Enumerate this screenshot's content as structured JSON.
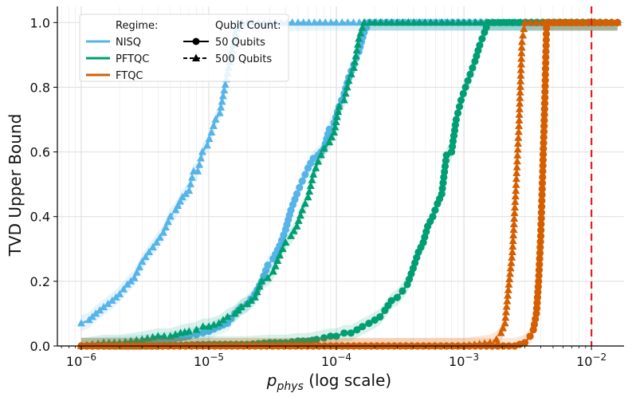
{
  "chart_data": {
    "type": "line",
    "title": "",
    "xlabel_main": "p",
    "xlabel_sub": "phys",
    "xlabel_suffix": " (log scale)",
    "ylabel": "TVD Upper Bound",
    "xscale": "log",
    "xlim": [
      6.5e-07,
      0.018
    ],
    "ylim": [
      0,
      1.05
    ],
    "x_ticks": [
      {
        "value": 1e-06,
        "base": "10",
        "exp": "−6"
      },
      {
        "value": 1e-05,
        "base": "10",
        "exp": "−5"
      },
      {
        "value": 0.0001,
        "base": "10",
        "exp": "−4"
      },
      {
        "value": 0.001,
        "base": "10",
        "exp": "−3"
      },
      {
        "value": 0.01,
        "base": "10",
        "exp": "−2"
      }
    ],
    "y_ticks": [
      "0.0",
      "0.2",
      "0.4",
      "0.6",
      "0.8",
      "1.0"
    ],
    "y_tick_values": [
      0,
      0.2,
      0.4,
      0.6,
      0.8,
      1.0
    ],
    "grid": true,
    "threshold_line": {
      "x": 0.01,
      "color": "#e41a1c",
      "style": "dashed"
    },
    "legend": {
      "placement": "top-left",
      "regime_title": "Regime:",
      "regimes": [
        {
          "name": "NISQ",
          "color": "#56b4e9"
        },
        {
          "name": "PFTQC",
          "color": "#009e73"
        },
        {
          "name": "FTQC",
          "color": "#d55e00"
        }
      ],
      "qubit_title": "Qubit Count:",
      "qubit_counts": [
        {
          "name": "50 Qubits",
          "marker": "circle",
          "style": "solid"
        },
        {
          "name": "500 Qubits",
          "marker": "triangle",
          "style": "dashed"
        }
      ]
    },
    "series": [
      {
        "name": "NISQ 500 Qubits",
        "regime": "NISQ",
        "qubits": 500,
        "color": "#56b4e9",
        "marker": "triangle",
        "style": "dashed",
        "points": [
          [
            1e-06,
            0.07
          ],
          [
            1.15e-06,
            0.08
          ],
          [
            1.3e-06,
            0.1
          ],
          [
            1.5e-06,
            0.12
          ],
          [
            1.75e-06,
            0.14
          ],
          [
            2e-06,
            0.16
          ],
          [
            2.3e-06,
            0.19
          ],
          [
            2.6e-06,
            0.21
          ],
          [
            3e-06,
            0.26
          ],
          [
            3.4e-06,
            0.29
          ],
          [
            3.9e-06,
            0.32
          ],
          [
            4.4e-06,
            0.35
          ],
          [
            5e-06,
            0.4
          ],
          [
            5.5e-06,
            0.42
          ],
          [
            6.2e-06,
            0.46
          ],
          [
            7e-06,
            0.48
          ],
          [
            7.6e-06,
            0.54
          ],
          [
            8.2e-06,
            0.54
          ],
          [
            8.9e-06,
            0.6
          ],
          [
            9.7e-06,
            0.62
          ],
          [
            1.05e-05,
            0.66
          ],
          [
            1.13e-05,
            0.7
          ],
          [
            1.22e-05,
            0.72
          ],
          [
            1.32e-05,
            0.79
          ],
          [
            1.43e-05,
            0.86
          ],
          [
            1.55e-05,
            0.93
          ],
          [
            1.68e-05,
            1.0
          ],
          [
            2e-05,
            1.0
          ],
          [
            3e-05,
            1.0
          ],
          [
            5e-05,
            1.0
          ],
          [
            0.0001,
            1.0
          ],
          [
            0.016,
            1.0
          ]
        ]
      },
      {
        "name": "NISQ 50 Qubits",
        "regime": "NISQ",
        "qubits": 50,
        "color": "#56b4e9",
        "marker": "circle",
        "style": "solid",
        "points": [
          [
            1e-06,
            0.0
          ],
          [
            2e-06,
            0.005
          ],
          [
            3e-06,
            0.01
          ],
          [
            4e-06,
            0.015
          ],
          [
            5e-06,
            0.02
          ],
          [
            6e-06,
            0.025
          ],
          [
            7e-06,
            0.03
          ],
          [
            8e-06,
            0.035
          ],
          [
            9e-06,
            0.04
          ],
          [
            1e-05,
            0.045
          ],
          [
            1.2e-05,
            0.06
          ],
          [
            1.4e-05,
            0.07
          ],
          [
            1.6e-05,
            0.1
          ],
          [
            1.8e-05,
            0.12
          ],
          [
            2e-05,
            0.13
          ],
          [
            2.3e-05,
            0.16
          ],
          [
            2.6e-05,
            0.2
          ],
          [
            2.9e-05,
            0.25
          ],
          [
            3.2e-05,
            0.27
          ],
          [
            3.6e-05,
            0.31
          ],
          [
            4e-05,
            0.36
          ],
          [
            4.4e-05,
            0.42
          ],
          [
            4.9e-05,
            0.47
          ],
          [
            5.4e-05,
            0.51
          ],
          [
            6e-05,
            0.55
          ],
          [
            6.6e-05,
            0.58
          ],
          [
            7.2e-05,
            0.59
          ],
          [
            8e-05,
            0.61
          ],
          [
            8.8e-05,
            0.67
          ],
          [
            9.6e-05,
            0.69
          ],
          [
            0.000105,
            0.74
          ],
          [
            0.000115,
            0.78
          ],
          [
            0.000125,
            0.83
          ],
          [
            0.000137,
            0.87
          ],
          [
            0.00015,
            0.91
          ],
          [
            0.000165,
            0.97
          ],
          [
            0.00018,
            1.0
          ],
          [
            0.0003,
            1.0
          ],
          [
            0.001,
            1.0
          ],
          [
            0.016,
            1.0
          ]
        ]
      },
      {
        "name": "PFTQC 500 Qubits",
        "regime": "PFTQC",
        "qubits": 500,
        "color": "#009e73",
        "marker": "triangle",
        "style": "dashed",
        "points": [
          [
            1e-06,
            0.0
          ],
          [
            1.5e-06,
            0.01
          ],
          [
            2e-06,
            0.01
          ],
          [
            3e-06,
            0.02
          ],
          [
            4e-06,
            0.03
          ],
          [
            5e-06,
            0.03
          ],
          [
            6e-06,
            0.04
          ],
          [
            7e-06,
            0.045
          ],
          [
            8e-06,
            0.05
          ],
          [
            9e-06,
            0.06
          ],
          [
            1e-05,
            0.06
          ],
          [
            1.2e-05,
            0.07
          ],
          [
            1.4e-05,
            0.09
          ],
          [
            1.6e-05,
            0.1
          ],
          [
            1.8e-05,
            0.12
          ],
          [
            2e-05,
            0.13
          ],
          [
            2.3e-05,
            0.15
          ],
          [
            2.6e-05,
            0.2
          ],
          [
            2.9e-05,
            0.21
          ],
          [
            3.2e-05,
            0.23
          ],
          [
            3.6e-05,
            0.28
          ],
          [
            4e-05,
            0.32
          ],
          [
            4.4e-05,
            0.34
          ],
          [
            4.9e-05,
            0.37
          ],
          [
            5.4e-05,
            0.42
          ],
          [
            6e-05,
            0.46
          ],
          [
            6.6e-05,
            0.53
          ],
          [
            7.2e-05,
            0.57
          ],
          [
            8e-05,
            0.61
          ],
          [
            8.8e-05,
            0.63
          ],
          [
            9.6e-05,
            0.66
          ],
          [
            0.000105,
            0.74
          ],
          [
            0.000115,
            0.76
          ],
          [
            0.000125,
            0.82
          ],
          [
            0.000137,
            0.86
          ],
          [
            0.00015,
            0.95
          ],
          [
            0.000165,
            1.0
          ],
          [
            0.0003,
            1.0
          ],
          [
            0.001,
            1.0
          ],
          [
            0.016,
            1.0
          ]
        ]
      },
      {
        "name": "PFTQC 50 Qubits",
        "regime": "PFTQC",
        "qubits": 50,
        "color": "#009e73",
        "marker": "circle",
        "style": "solid",
        "points": [
          [
            1e-06,
            0.0
          ],
          [
            2e-06,
            0.0
          ],
          [
            4e-06,
            0.0
          ],
          [
            1e-05,
            0.005
          ],
          [
            2e-05,
            0.005
          ],
          [
            3e-05,
            0.01
          ],
          [
            4e-05,
            0.01
          ],
          [
            5e-05,
            0.015
          ],
          [
            6e-05,
            0.015
          ],
          [
            7e-05,
            0.02
          ],
          [
            8e-05,
            0.025
          ],
          [
            9e-05,
            0.03
          ],
          [
            0.0001,
            0.03
          ],
          [
            0.000115,
            0.04
          ],
          [
            0.00013,
            0.04
          ],
          [
            0.000145,
            0.05
          ],
          [
            0.00016,
            0.06
          ],
          [
            0.00018,
            0.07
          ],
          [
            0.0002,
            0.08
          ],
          [
            0.00022,
            0.09
          ],
          [
            0.00024,
            0.11
          ],
          [
            0.00027,
            0.14
          ],
          [
            0.0003,
            0.15
          ],
          [
            0.00033,
            0.17
          ],
          [
            0.00036,
            0.19
          ],
          [
            0.0004,
            0.24
          ],
          [
            0.00044,
            0.29
          ],
          [
            0.00048,
            0.32
          ],
          [
            0.00052,
            0.37
          ],
          [
            0.00057,
            0.4
          ],
          [
            0.00062,
            0.44
          ],
          [
            0.00067,
            0.47
          ],
          [
            0.00073,
            0.59
          ],
          [
            0.0008,
            0.6
          ],
          [
            0.00087,
            0.7
          ],
          [
            0.00095,
            0.76
          ],
          [
            0.00103,
            0.8
          ],
          [
            0.00112,
            0.84
          ],
          [
            0.00122,
            0.88
          ],
          [
            0.00133,
            0.93
          ],
          [
            0.00145,
            0.97
          ],
          [
            0.00155,
            1.0
          ],
          [
            0.003,
            1.0
          ],
          [
            0.016,
            1.0
          ]
        ]
      },
      {
        "name": "FTQC 500 Qubits",
        "regime": "FTQC",
        "qubits": 500,
        "color": "#d55e00",
        "marker": "triangle",
        "style": "dashed",
        "points": [
          [
            1e-06,
            0.0
          ],
          [
            1e-05,
            0.0
          ],
          [
            0.0001,
            0.0
          ],
          [
            0.001,
            0.0
          ],
          [
            0.0016,
            0.01
          ],
          [
            0.0018,
            0.02
          ],
          [
            0.00195,
            0.04
          ],
          [
            0.0021,
            0.07
          ],
          [
            0.00225,
            0.19
          ],
          [
            0.0024,
            0.29
          ],
          [
            0.00255,
            0.48
          ],
          [
            0.0027,
            0.68
          ],
          [
            0.00285,
            0.94
          ],
          [
            0.003,
            1.0
          ],
          [
            0.005,
            1.0
          ],
          [
            0.016,
            1.0
          ]
        ]
      },
      {
        "name": "FTQC 50 Qubits",
        "regime": "FTQC",
        "qubits": 50,
        "color": "#d55e00",
        "marker": "circle",
        "style": "solid",
        "points": [
          [
            1e-06,
            0.0
          ],
          [
            1e-05,
            0.0
          ],
          [
            0.0001,
            0.0
          ],
          [
            0.001,
            0.0
          ],
          [
            0.0025,
            0.0
          ],
          [
            0.003,
            0.01
          ],
          [
            0.0033,
            0.03
          ],
          [
            0.0035,
            0.05
          ],
          [
            0.0037,
            0.1
          ],
          [
            0.00385,
            0.2
          ],
          [
            0.004,
            0.34
          ],
          [
            0.00415,
            0.54
          ],
          [
            0.0043,
            0.75
          ],
          [
            0.00445,
            1.0
          ],
          [
            0.006,
            1.0
          ],
          [
            0.016,
            1.0
          ]
        ]
      }
    ]
  }
}
